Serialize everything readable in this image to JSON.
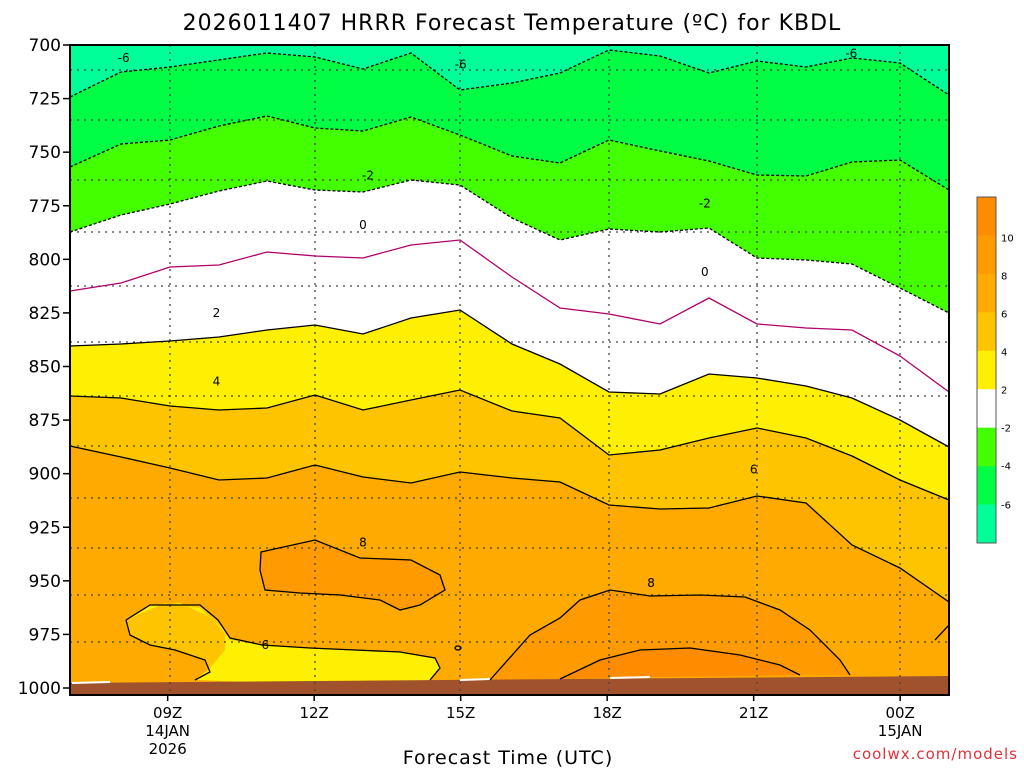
{
  "chart_data": {
    "type": "contour",
    "title": "2026011407 HRRR Forecast Temperature (ºC) for KBDL",
    "xlabel": "Forecast Time (UTC)",
    "credit": "coolwx.com/models",
    "y_axis": {
      "ticks": [
        "700",
        "725",
        "750",
        "775",
        "800",
        "825",
        "850",
        "875",
        "900",
        "925",
        "950",
        "975",
        "1000"
      ],
      "range": [
        700,
        1000
      ],
      "inverted": true
    },
    "x_axis": {
      "ticks": [
        {
          "label": "09Z",
          "sub1": "14JAN",
          "sub2": "2026"
        },
        {
          "label": "12Z",
          "sub1": "",
          "sub2": ""
        },
        {
          "label": "15Z",
          "sub1": "",
          "sub2": ""
        },
        {
          "label": "18Z",
          "sub1": "",
          "sub2": ""
        },
        {
          "label": "21Z",
          "sub1": "",
          "sub2": ""
        },
        {
          "label": "00Z",
          "sub1": "15JAN",
          "sub2": ""
        }
      ],
      "range_hours": [
        7,
        25
      ]
    },
    "grid": true,
    "colorbar": {
      "placement": "right",
      "labels": [
        "10",
        "8",
        "6",
        "4",
        "2",
        "-2",
        "-4",
        "-6"
      ],
      "bins": [
        {
          "min": 10,
          "max": 12,
          "color": "#ff8c00"
        },
        {
          "min": 8,
          "max": 10,
          "color": "#ff9a00"
        },
        {
          "min": 6,
          "max": 8,
          "color": "#ffaa00"
        },
        {
          "min": 4,
          "max": 6,
          "color": "#ffc400"
        },
        {
          "min": 2,
          "max": 4,
          "color": "#ffef00"
        },
        {
          "min": -2,
          "max": 2,
          "color": "#ffffff"
        },
        {
          "min": -4,
          "max": -2,
          "color": "#44ff00"
        },
        {
          "min": -6,
          "max": -4,
          "color": "#00ff44"
        },
        {
          "min": -8,
          "max": -6,
          "color": "#00ff99"
        }
      ]
    },
    "contour_labels": [
      {
        "text": "-6",
        "t": 8.1,
        "p": 706
      },
      {
        "text": "-6",
        "t": 15.0,
        "p": 709
      },
      {
        "text": "-6",
        "t": 23.0,
        "p": 704
      },
      {
        "text": "-2",
        "t": 13.1,
        "p": 761
      },
      {
        "text": "-2",
        "t": 20.0,
        "p": 774
      },
      {
        "text": "0",
        "t": 13.0,
        "p": 784
      },
      {
        "text": "0",
        "t": 20.0,
        "p": 806
      },
      {
        "text": "2",
        "t": 10.0,
        "p": 825
      },
      {
        "text": "4",
        "t": 10.0,
        "p": 857
      },
      {
        "text": "6",
        "t": 21.0,
        "p": 898
      },
      {
        "text": "8",
        "t": 13.0,
        "p": 932
      },
      {
        "text": "8",
        "t": 18.9,
        "p": 951
      },
      {
        "text": "6",
        "t": 11.0,
        "p": 980
      }
    ]
  },
  "colors": {
    "ground": "#a0522d",
    "zero_line": "#b0006a"
  }
}
